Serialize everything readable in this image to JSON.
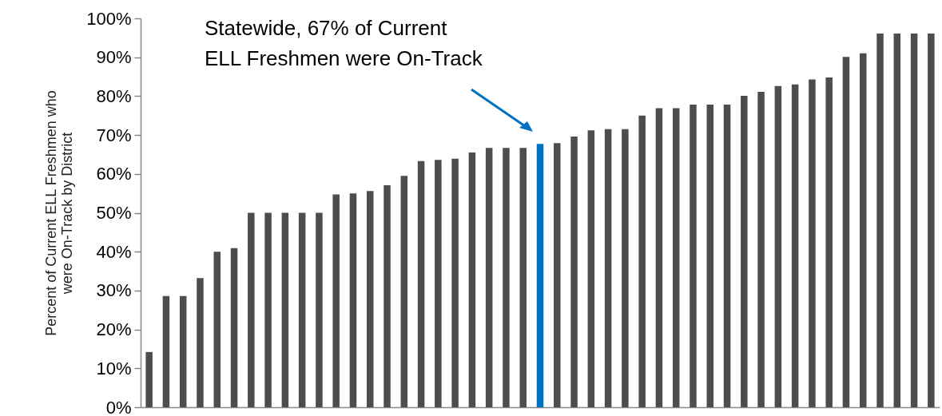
{
  "chart_data": {
    "type": "bar",
    "ylabel": "Percent of Current ELL Freshmen who\nwere On-Track by District",
    "categories": [
      null,
      null,
      null,
      null,
      null,
      null,
      null,
      null,
      null,
      null,
      null,
      null,
      null,
      null,
      null,
      null,
      null,
      null,
      null,
      null,
      null,
      null,
      null,
      null,
      null,
      null,
      null,
      null,
      null,
      null,
      null,
      null,
      null,
      null,
      null,
      null,
      null,
      null,
      null,
      null,
      null,
      null,
      null,
      null,
      null,
      null,
      null
    ],
    "values": [
      14.2,
      28.6,
      28.6,
      33.2,
      40.0,
      40.9,
      50,
      50,
      50,
      50,
      50,
      54.7,
      55.0,
      55.6,
      57.1,
      59.5,
      63.3,
      63.6,
      63.9,
      65.5,
      66.7,
      66.7,
      66.7,
      67.7,
      67.9,
      69.6,
      71.2,
      71.5,
      71.5,
      75.0,
      76.9,
      76.9,
      77.8,
      77.8,
      77.8,
      80.1,
      81.1,
      82.6,
      83.0,
      84.3,
      84.8,
      90.1,
      91.0,
      96.1,
      96.1,
      96.1,
      96.1
    ],
    "colors": [
      "#4d4d4d",
      "#4d4d4d",
      "#4d4d4d",
      "#4d4d4d",
      "#4d4d4d",
      "#4d4d4d",
      "#4d4d4d",
      "#4d4d4d",
      "#4d4d4d",
      "#4d4d4d",
      "#4d4d4d",
      "#4d4d4d",
      "#4d4d4d",
      "#4d4d4d",
      "#4d4d4d",
      "#4d4d4d",
      "#4d4d4d",
      "#4d4d4d",
      "#4d4d4d",
      "#4d4d4d",
      "#4d4d4d",
      "#4d4d4d",
      "#4d4d4d",
      "#0070c0",
      "#4d4d4d",
      "#4d4d4d",
      "#4d4d4d",
      "#4d4d4d",
      "#4d4d4d",
      "#4d4d4d",
      "#4d4d4d",
      "#4d4d4d",
      "#4d4d4d",
      "#4d4d4d",
      "#4d4d4d",
      "#4d4d4d",
      "#4d4d4d",
      "#4d4d4d",
      "#4d4d4d",
      "#4d4d4d",
      "#4d4d4d",
      "#4d4d4d",
      "#4d4d4d",
      "#4d4d4d",
      "#4d4d4d",
      "#4d4d4d",
      "#4d4d4d"
    ],
    "ylim": [
      0,
      100
    ],
    "yticks": [
      {
        "value": 0,
        "label": "0%"
      },
      {
        "value": 10,
        "label": "10%"
      },
      {
        "value": 20,
        "label": "20%"
      },
      {
        "value": 30,
        "label": "30%"
      },
      {
        "value": 40,
        "label": "40%"
      },
      {
        "value": 50,
        "label": "50%"
      },
      {
        "value": 60,
        "label": "60%"
      },
      {
        "value": 70,
        "label": "70%"
      },
      {
        "value": 80,
        "label": "80%"
      },
      {
        "value": 90,
        "label": "90%"
      },
      {
        "value": 100,
        "label": "100%"
      }
    ],
    "tick_labels": "y",
    "grid": false,
    "annotations": [
      "Statewide, 67% of Current\nELL Freshmen were On-Track"
    ]
  }
}
